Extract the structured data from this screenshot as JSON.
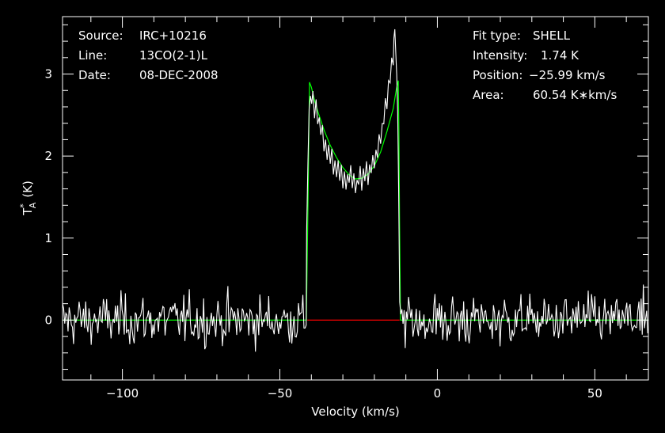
{
  "info_left": {
    "source_label": "Source:",
    "source_value": "IRC+10216",
    "line_label": "Line:",
    "line_value": "13CO(2-1)L",
    "date_label": "Date:",
    "date_value": "08-DEC-2008"
  },
  "info_right": {
    "fit_label": "Fit type:",
    "fit_value": "SHELL",
    "intensity_label": "Intensity:",
    "intensity_value": "1.74 K",
    "position_label": "Position:",
    "position_value": "−25.99 km/s",
    "area_label": "Area:",
    "area_value": "60.54 K∗km/s"
  },
  "colors": {
    "data": "#ffffff",
    "fit": "#00ff00",
    "baseline": "#ff0000",
    "axes": "#ffffff",
    "background": "#000000"
  },
  "chart_data": {
    "type": "line",
    "xlabel": "Velocity (km/s)",
    "ylabel_main": "T",
    "ylabel_sup": "*",
    "ylabel_sub": "A",
    "ylabel_unit": "(K)",
    "xlim": [
      -119,
      67
    ],
    "ylim": [
      -0.73,
      3.7
    ],
    "x_ticks": [
      -100,
      -50,
      0,
      50
    ],
    "x_tick_labels": [
      "−100",
      "−50",
      "0",
      "50"
    ],
    "y_ticks": [
      0,
      1,
      2,
      3
    ],
    "y_tick_labels": [
      "0",
      "1",
      "2",
      "3"
    ],
    "grid": false,
    "channel_width_kmps": 0.35,
    "noise_rms_K": 0.15,
    "baseline": {
      "x": [
        -41.3,
        -12.0
      ],
      "y": [
        0,
        0
      ]
    },
    "series": [
      {
        "name": "",
        "role": "fit",
        "x": [
          -119,
          -41.6,
          -41.3,
          -41.0,
          -40.6,
          -40,
          -39,
          -38,
          -36,
          -34,
          -32,
          -30,
          -28,
          -26,
          -24,
          -22,
          -20,
          -18,
          -16,
          -14,
          -13,
          -12.4,
          -12.2,
          -12.0,
          -11.7,
          67
        ],
        "y": [
          0,
          0,
          0.8,
          1.6,
          2.9,
          2.84,
          2.68,
          2.55,
          2.32,
          2.13,
          1.98,
          1.86,
          1.77,
          1.72,
          1.73,
          1.78,
          1.88,
          2.05,
          2.3,
          2.58,
          2.82,
          2.92,
          2.3,
          1.2,
          0,
          0
        ]
      },
      {
        "name": "",
        "role": "data",
        "x": [
          -41.5,
          -41.1,
          -40.7,
          -40.3,
          -39.9,
          -39.5,
          -39,
          -38.5,
          -38,
          -37.5,
          -37,
          -36.5,
          -36,
          -35.5,
          -35,
          -34.5,
          -34,
          -33.5,
          -33,
          -32.5,
          -32,
          -31.5,
          -31,
          -30.5,
          -30,
          -29.5,
          -29,
          -28.5,
          -28,
          -27.5,
          -27,
          -26.5,
          -26,
          -25.5,
          -25,
          -24.5,
          -24,
          -23.5,
          -23,
          -22.5,
          -22,
          -21.5,
          -21,
          -20.5,
          -20,
          -19.5,
          -19,
          -18.5,
          -18,
          -17.5,
          -17,
          -16.5,
          -16,
          -15.5,
          -15,
          -14.5,
          -14,
          -13.8,
          -13.5,
          -13.2,
          -12.9,
          -12.6,
          -12.3
        ],
        "y": [
          1.05,
          1.9,
          2.55,
          2.75,
          2.6,
          2.85,
          2.45,
          2.7,
          2.35,
          2.5,
          2.2,
          2.4,
          2.05,
          2.25,
          1.95,
          2.15,
          1.85,
          2.1,
          1.75,
          2.0,
          1.7,
          1.95,
          1.65,
          1.9,
          1.6,
          1.85,
          1.55,
          1.8,
          1.65,
          1.9,
          1.55,
          1.8,
          1.5,
          1.75,
          1.6,
          1.9,
          1.55,
          1.85,
          1.65,
          1.95,
          1.6,
          1.9,
          1.75,
          2.05,
          1.8,
          2.1,
          1.95,
          2.3,
          2.1,
          2.45,
          2.35,
          2.75,
          2.55,
          2.95,
          2.85,
          3.2,
          3.1,
          3.48,
          3.5,
          3.3,
          2.95,
          2.6,
          1.6
        ]
      }
    ]
  }
}
